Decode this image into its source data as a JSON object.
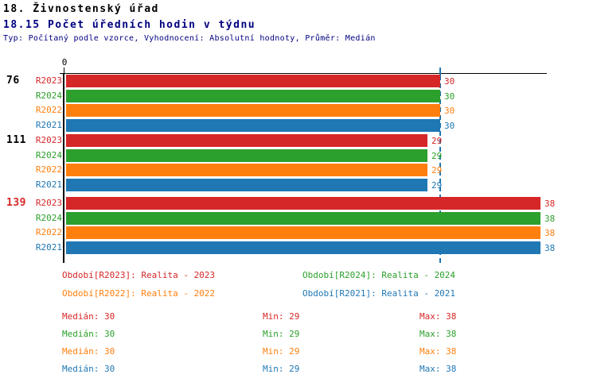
{
  "header": {
    "title": "18. Živnostenský úřad",
    "subtitle": "18.15 Počet úředních hodin v týdnu",
    "meta": "Typ: Počítaný podle vzorce, Vyhodnocení: Absolutní hodnoty, Průměr: Medián"
  },
  "colors": {
    "r2023": "#d62728",
    "r2024": "#2ca02c",
    "r2022": "#ff7f0e",
    "r2021": "#1f77b4",
    "axis": "#000000",
    "median_line": "#1f77b4",
    "title": "#000000",
    "subtitle": "#000080",
    "highlight_group": "#d62728"
  },
  "chart_data": {
    "type": "bar",
    "orientation": "horizontal",
    "title": "18.15 Počet úředních hodin v týdnu",
    "xlabel": "",
    "ylabel": "",
    "xlim": [
      0,
      38.5
    ],
    "grid": false,
    "axis": {
      "origin_label": "0",
      "median_value": 30
    },
    "series_order": [
      "R2023",
      "R2024",
      "R2022",
      "R2021"
    ],
    "groups": [
      {
        "label": "76",
        "highlighted": false,
        "bars": [
          {
            "series": "R2023",
            "color_key": "r2023",
            "value": 30
          },
          {
            "series": "R2024",
            "color_key": "r2024",
            "value": 30
          },
          {
            "series": "R2022",
            "color_key": "r2022",
            "value": 30
          },
          {
            "series": "R2021",
            "color_key": "r2021",
            "value": 30
          }
        ]
      },
      {
        "label": "111",
        "highlighted": false,
        "bars": [
          {
            "series": "R2023",
            "color_key": "r2023",
            "value": 29
          },
          {
            "series": "R2024",
            "color_key": "r2024",
            "value": 29
          },
          {
            "series": "R2022",
            "color_key": "r2022",
            "value": 29
          },
          {
            "series": "R2021",
            "color_key": "r2021",
            "value": 29
          }
        ]
      },
      {
        "label": "139",
        "highlighted": true,
        "bars": [
          {
            "series": "R2023",
            "color_key": "r2023",
            "value": 38
          },
          {
            "series": "R2024",
            "color_key": "r2024",
            "value": 38
          },
          {
            "series": "R2022",
            "color_key": "r2022",
            "value": 38
          },
          {
            "series": "R2021",
            "color_key": "r2021",
            "value": 38
          }
        ]
      }
    ],
    "legend": {
      "position": "below",
      "items": [
        {
          "label": "Období[R2023]: Realita - 2023",
          "color_key": "r2023"
        },
        {
          "label": "Období[R2024]: Realita - 2024",
          "color_key": "r2024"
        },
        {
          "label": "Období[R2022]: Realita - 2022",
          "color_key": "r2022"
        },
        {
          "label": "Období[R2021]: Realita - 2021",
          "color_key": "r2021"
        }
      ]
    },
    "stats": {
      "labels": {
        "median": "Medián",
        "min": "Min",
        "max": "Max"
      },
      "rows": [
        {
          "color_key": "r2023",
          "median": 30,
          "min": 29,
          "max": 38
        },
        {
          "color_key": "r2024",
          "median": 30,
          "min": 29,
          "max": 38
        },
        {
          "color_key": "r2022",
          "median": 30,
          "min": 29,
          "max": 38
        },
        {
          "color_key": "r2021",
          "median": 30,
          "min": 29,
          "max": 38
        }
      ]
    }
  }
}
